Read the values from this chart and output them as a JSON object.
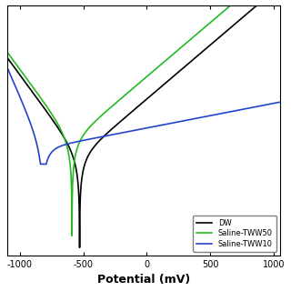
{
  "xlabel": "Potential (mV)",
  "xlim": [
    -1100,
    1050
  ],
  "ylim": [
    -8.8,
    -2.5
  ],
  "legend": [
    "DW",
    "Saline-TWW50",
    "Saline-TWW10"
  ],
  "colors": [
    "black",
    "#22bb22",
    "#2244cc"
  ],
  "legend_loc": "lower right",
  "curves": {
    "DW": {
      "Ecorr": -530,
      "log_icorr": -6.3,
      "ba": 160,
      "bc": 100,
      "floor": -8.6
    },
    "Green": {
      "Ecorr": -590,
      "log_icorr": -5.9,
      "ba": 160,
      "bc": 100,
      "floor": -8.3
    },
    "Blue": {
      "Ecorr": -820,
      "log_icorr": -6.1,
      "ba": 700,
      "bc": 60,
      "floor": -6.5
    }
  }
}
